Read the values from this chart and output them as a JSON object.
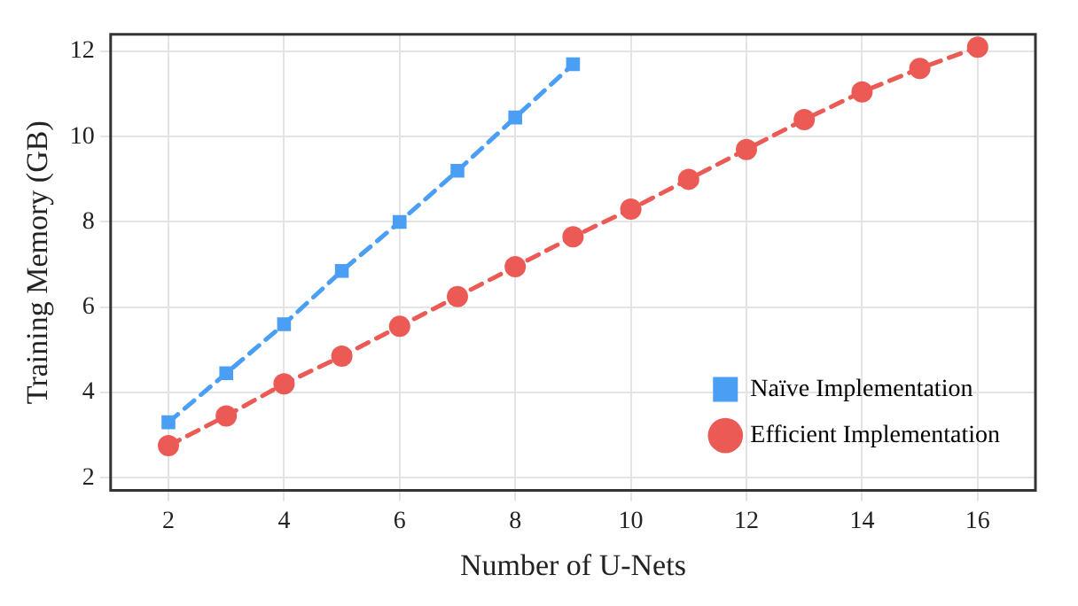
{
  "chart_data": {
    "type": "line",
    "xlabel": "Number of U-Nets",
    "ylabel": "Training Memory (GB)",
    "xlim": [
      1,
      17
    ],
    "xticks": [
      2,
      4,
      6,
      8,
      10,
      12,
      14,
      16
    ],
    "ylim": [
      1.7,
      12.4
    ],
    "yticks": [
      2,
      4,
      6,
      8,
      10,
      12
    ],
    "grid": true,
    "legend": "bottom right",
    "line_style": "dashed",
    "series": [
      {
        "name": "Naïve Implementation",
        "color": "#4a9ff5",
        "marker": "square",
        "x": [
          2,
          3,
          4,
          5,
          6,
          7,
          8,
          9
        ],
        "values": [
          3.3,
          4.45,
          5.6,
          6.85,
          8.0,
          9.2,
          10.45,
          11.7
        ]
      },
      {
        "name": "Efficient Implementation",
        "color": "#eb5a55",
        "marker": "circle",
        "x": [
          2,
          3,
          4,
          5,
          6,
          7,
          8,
          9,
          10,
          11,
          12,
          13,
          14,
          15,
          16
        ],
        "values": [
          2.75,
          3.45,
          4.2,
          4.85,
          5.55,
          6.25,
          6.95,
          7.65,
          8.3,
          9.0,
          9.7,
          10.4,
          11.05,
          11.6,
          12.1
        ]
      }
    ]
  }
}
